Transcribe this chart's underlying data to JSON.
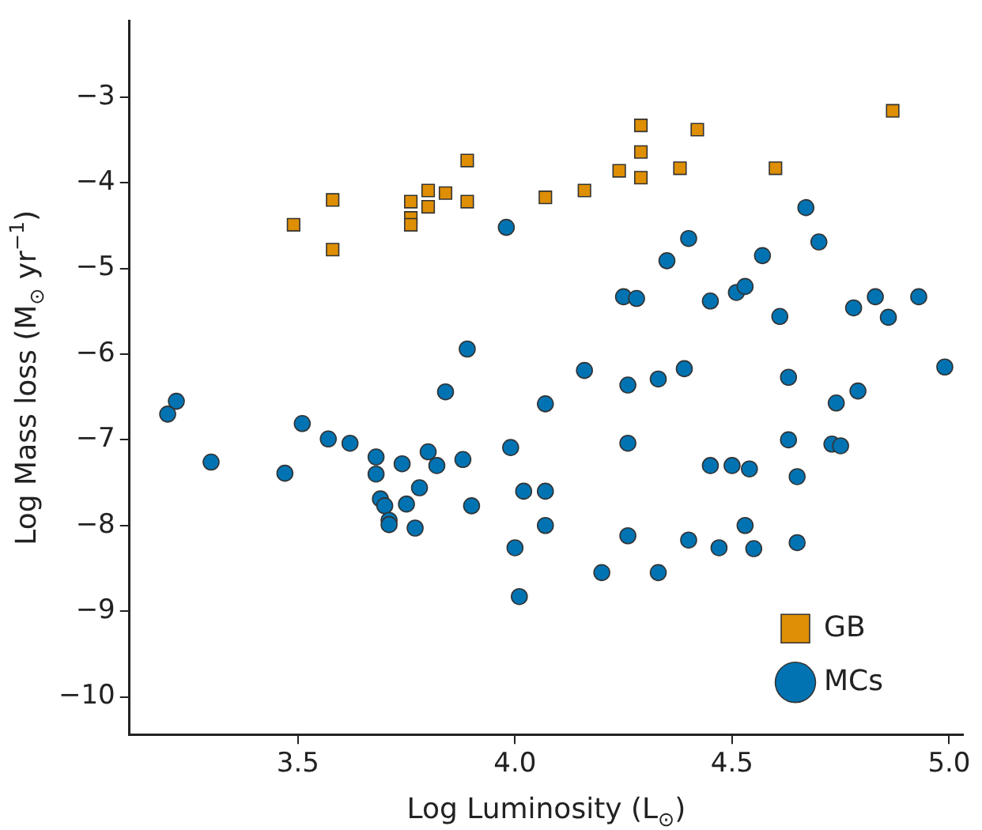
{
  "chart_data": {
    "type": "scatter",
    "xlabel": "Log Luminosity (L$_{⊙}$)",
    "ylabel": "Log Mass loss (M$_{⊙}$ yr$^{−1}$)",
    "xlim": [
      3.112,
      5.032
    ],
    "ylim": [
      -10.44,
      -2.11
    ],
    "xticks": [
      3.5,
      {
        "value": 4,
        "label": "4.0"
      },
      4.5,
      {
        "value": 5,
        "label": "5.0"
      }
    ],
    "yticks": [
      {
        "value": -3,
        "label": "−3"
      },
      {
        "value": -4,
        "label": "−4"
      },
      {
        "value": -5,
        "label": "−5"
      },
      {
        "value": -6,
        "label": "−6"
      },
      {
        "value": -7,
        "label": "−7"
      },
      {
        "value": -8,
        "label": "−8"
      },
      {
        "value": -9,
        "label": "−9"
      },
      {
        "value": -10,
        "label": "−10"
      }
    ],
    "grid": false,
    "legend": "bottom right",
    "series": [
      {
        "name": "GB",
        "color": "#de8f05",
        "marker": "square",
        "x": [
          3.49,
          3.58,
          3.58,
          3.76,
          3.76,
          3.76,
          3.8,
          3.8,
          3.84,
          3.89,
          3.89,
          4.07,
          4.16,
          4.24,
          4.29,
          4.29,
          4.29,
          4.38,
          4.42,
          4.6,
          4.87
        ],
        "values": [
          -4.49,
          -4.2,
          -4.78,
          -4.22,
          -4.41,
          -4.49,
          -4.09,
          -4.28,
          -4.12,
          -3.74,
          -4.22,
          -4.17,
          -4.09,
          -3.86,
          -3.33,
          -3.64,
          -3.94,
          -3.83,
          -3.38,
          -3.83,
          -3.16
        ]
      },
      {
        "name": "MCs",
        "color": "#0173b2",
        "marker": "circle",
        "x": [
          3.98,
          3.89,
          4.67,
          4.4,
          4.35,
          4.57,
          4.7,
          4.25,
          4.28,
          4.45,
          4.51,
          4.53,
          4.61,
          4.78,
          4.83,
          4.86,
          4.93,
          4.16,
          4.26,
          4.33,
          4.39,
          4.63,
          4.74,
          4.99,
          4.07,
          4.79,
          4.26,
          4.63,
          4.73,
          4.75,
          4.45,
          4.5,
          4.54,
          4.65,
          4.02,
          4.07,
          4.07,
          4.53,
          4.26,
          4.4,
          4.47,
          4.55,
          4.65,
          4.2,
          4.33,
          4.0,
          4.01,
          3.22,
          3.2,
          3.51,
          3.57,
          3.62,
          3.3,
          3.47,
          3.68,
          3.68,
          3.74,
          3.8,
          3.82,
          3.88,
          3.78,
          3.69,
          3.7,
          3.75,
          3.71,
          3.71,
          3.77,
          3.9,
          3.84,
          3.99
        ],
        "values": [
          -4.52,
          -5.94,
          -4.29,
          -4.65,
          -4.91,
          -4.85,
          -4.69,
          -5.33,
          -5.35,
          -5.38,
          -5.28,
          -5.21,
          -5.56,
          -5.46,
          -5.33,
          -5.57,
          -5.33,
          -6.19,
          -6.36,
          -6.29,
          -6.17,
          -6.27,
          -6.57,
          -6.15,
          -6.58,
          -6.43,
          -7.04,
          -7.0,
          -7.05,
          -7.07,
          -7.3,
          -7.3,
          -7.34,
          -7.43,
          -7.6,
          -7.6,
          -8.0,
          -8.0,
          -8.12,
          -8.17,
          -8.26,
          -8.27,
          -8.2,
          -8.55,
          -8.55,
          -8.26,
          -8.83,
          -6.55,
          -6.7,
          -6.81,
          -6.99,
          -7.04,
          -7.26,
          -7.39,
          -7.2,
          -7.4,
          -7.28,
          -7.14,
          -7.3,
          -7.23,
          -7.56,
          -7.69,
          -7.77,
          -7.75,
          -7.94,
          -7.99,
          -8.03,
          -7.77,
          -6.44,
          -7.09
        ]
      }
    ]
  }
}
